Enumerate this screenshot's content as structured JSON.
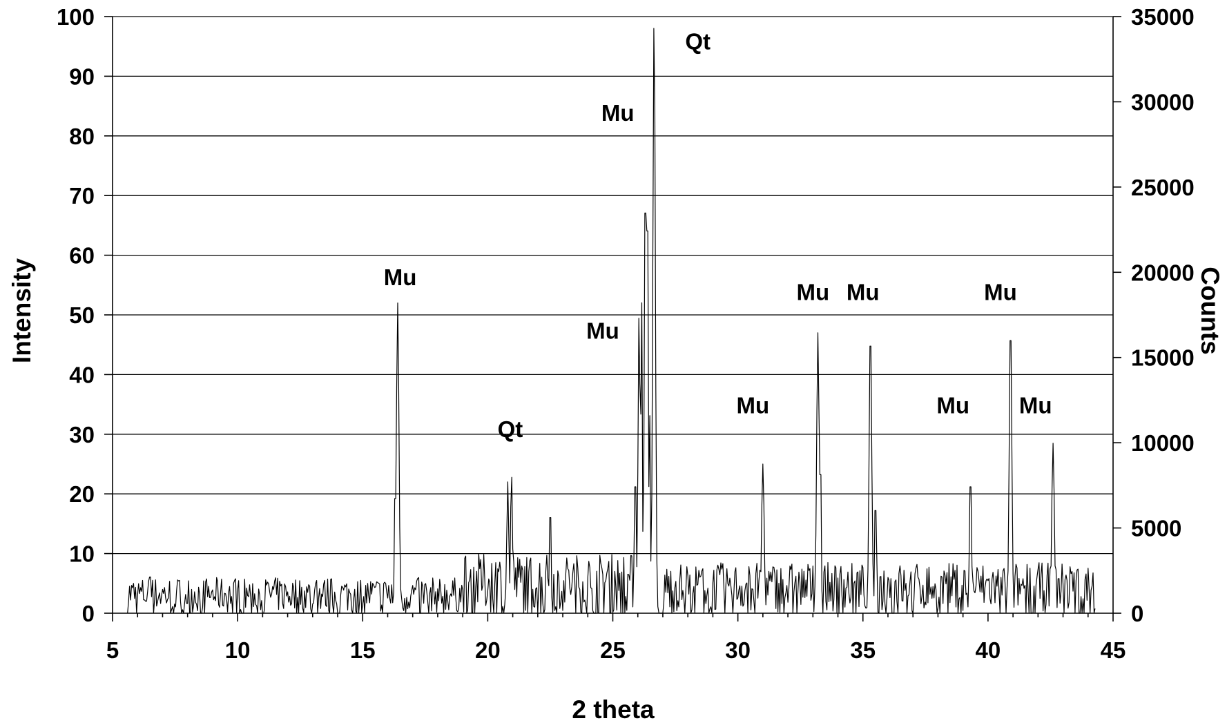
{
  "chart_data": {
    "type": "line",
    "title": "",
    "xlabel": "2 theta",
    "ylabel": "Intensity",
    "y2label": "Counts",
    "xlim": [
      5,
      45
    ],
    "ylim": [
      0,
      100
    ],
    "y2lim": [
      0,
      35000
    ],
    "xticks": [
      5,
      10,
      15,
      20,
      25,
      30,
      35,
      40,
      45
    ],
    "yticks": [
      0,
      10,
      20,
      30,
      40,
      50,
      60,
      70,
      80,
      90,
      100
    ],
    "y2ticks": [
      0,
      5000,
      10000,
      15000,
      20000,
      25000,
      30000,
      35000
    ],
    "grid": "horizontal",
    "legend": "none",
    "x_start": 5.6,
    "x_end": 44.3,
    "noise_seed": 7,
    "peaks": [
      {
        "x": 6.5,
        "y": 10,
        "w": 0.02
      },
      {
        "x": 16.4,
        "y": 52,
        "w": 0.05
      },
      {
        "x": 16.3,
        "y": 24,
        "w": 0.03
      },
      {
        "x": 20.8,
        "y": 22,
        "w": 0.04
      },
      {
        "x": 20.95,
        "y": 23.5,
        "w": 0.04
      },
      {
        "x": 22.5,
        "y": 20,
        "w": 0.03
      },
      {
        "x": 25.9,
        "y": 24,
        "w": 0.04
      },
      {
        "x": 26.05,
        "y": 51,
        "w": 0.04
      },
      {
        "x": 26.15,
        "y": 55,
        "w": 0.03
      },
      {
        "x": 26.3,
        "y": 76,
        "w": 0.04
      },
      {
        "x": 26.38,
        "y": 80,
        "w": 0.03
      },
      {
        "x": 26.47,
        "y": 35,
        "w": 0.03
      },
      {
        "x": 26.65,
        "y": 100,
        "w": 0.05
      },
      {
        "x": 31.0,
        "y": 25,
        "w": 0.05
      },
      {
        "x": 33.2,
        "y": 47,
        "w": 0.05
      },
      {
        "x": 33.3,
        "y": 29,
        "w": 0.03
      },
      {
        "x": 35.3,
        "y": 48.5,
        "w": 0.05
      },
      {
        "x": 35.5,
        "y": 21.5,
        "w": 0.03
      },
      {
        "x": 39.3,
        "y": 24,
        "w": 0.04
      },
      {
        "x": 40.9,
        "y": 49.5,
        "w": 0.05
      },
      {
        "x": 42.6,
        "y": 28.5,
        "w": 0.05
      }
    ],
    "annotations": [
      {
        "text": "Mu",
        "x": 16.5,
        "y": 55
      },
      {
        "text": "Qt",
        "x": 20.9,
        "y": 29.5
      },
      {
        "text": "Mu",
        "x": 24.6,
        "y": 46
      },
      {
        "text": "Mu",
        "x": 25.2,
        "y": 82.5
      },
      {
        "text": "Qt",
        "x": 28.4,
        "y": 94.5
      },
      {
        "text": "Mu",
        "x": 30.6,
        "y": 33.5
      },
      {
        "text": "Mu",
        "x": 33.0,
        "y": 52.5
      },
      {
        "text": "Mu",
        "x": 35.0,
        "y": 52.5
      },
      {
        "text": "Mu",
        "x": 38.6,
        "y": 33.5
      },
      {
        "text": "Mu",
        "x": 40.5,
        "y": 52.5
      },
      {
        "text": "Mu",
        "x": 41.9,
        "y": 33.5
      }
    ]
  }
}
